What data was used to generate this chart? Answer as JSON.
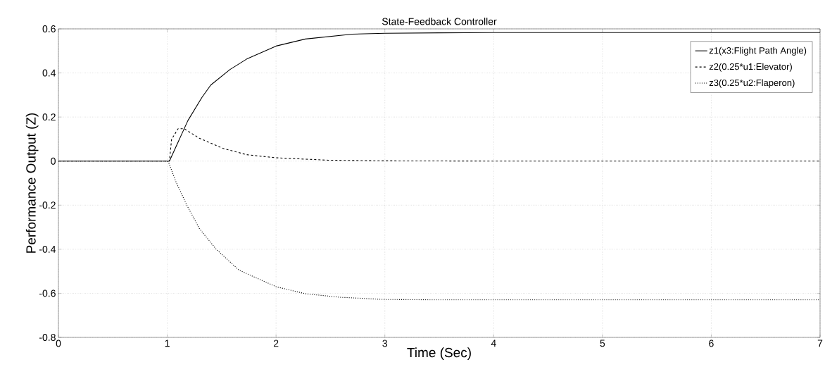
{
  "chart_data": {
    "type": "line",
    "title": "State-Feedback Controller",
    "xlabel": "Time (Sec)",
    "ylabel": "Performance Output (Z)",
    "xlim": [
      0,
      7
    ],
    "ylim": [
      -0.8,
      0.6
    ],
    "xticks": [
      0,
      1,
      2,
      3,
      4,
      5,
      6,
      7
    ],
    "yticks": [
      -0.8,
      -0.6,
      -0.4,
      -0.2,
      0,
      0.2,
      0.4,
      0.6
    ],
    "grid": true,
    "legend": "top right",
    "series": [
      {
        "name": "z1(x3:Flight Path Angle)",
        "color": "#000000",
        "line_style": "solid",
        "x": [
          0,
          1,
          1.02,
          1.19,
          1.32,
          1.4,
          1.575,
          1.73,
          2.0,
          2.27,
          2.7,
          3.0,
          3.5,
          4,
          5,
          6,
          7
        ],
        "values": [
          0,
          0,
          0,
          0.184,
          0.29,
          0.345,
          0.415,
          0.463,
          0.522,
          0.554,
          0.576,
          0.58,
          0.582,
          0.583,
          0.583,
          0.583,
          0.583
        ]
      },
      {
        "name": "z2(0.25*u1:Elevator)",
        "color": "#000000",
        "line_style": "dashed",
        "x": [
          0,
          1,
          1.02,
          1.04,
          1.1,
          1.155,
          1.295,
          1.51,
          1.73,
          2.0,
          2.48,
          3.0,
          4,
          5,
          6,
          7
        ],
        "values": [
          0,
          0,
          0,
          0.099,
          0.147,
          0.147,
          0.104,
          0.058,
          0.029,
          0.015,
          0.004,
          0.001,
          0,
          0,
          0,
          0
        ]
      },
      {
        "name": "z3(0.25*u2:Flaperon)",
        "color": "#000000",
        "line_style": "dotted",
        "x": [
          0,
          1,
          1.015,
          1.08,
          1.18,
          1.295,
          1.45,
          1.66,
          2.0,
          2.27,
          2.59,
          3.0,
          3.5,
          4,
          5,
          6,
          7
        ],
        "values": [
          0,
          0,
          -0.009,
          -0.094,
          -0.2,
          -0.306,
          -0.4,
          -0.495,
          -0.57,
          -0.602,
          -0.618,
          -0.628,
          -0.63,
          -0.63,
          -0.63,
          -0.63,
          -0.63
        ]
      }
    ]
  }
}
